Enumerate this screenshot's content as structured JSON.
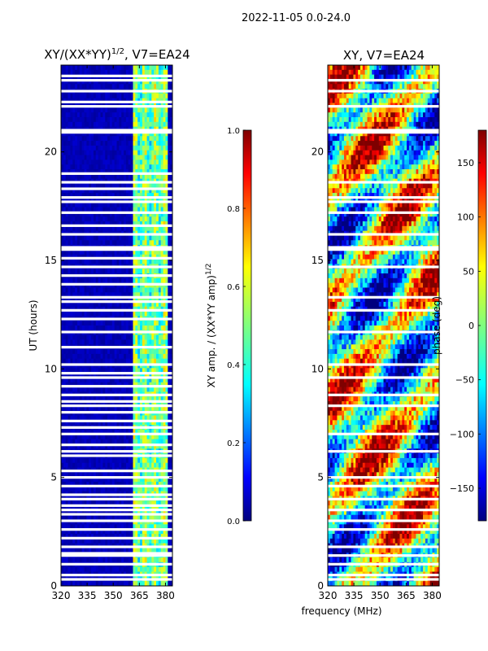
{
  "suptitle": "2022-11-05 0.0-24.0",
  "shared": {
    "xlabel": "frequency (MHz)"
  },
  "colors": {
    "jet": [
      "#00007f",
      "#0000ff",
      "#007fff",
      "#00ffff",
      "#7fff7f",
      "#ffff00",
      "#ff7f00",
      "#ff0000",
      "#7f0000"
    ],
    "gap": "#ffffff",
    "axis": "#000000"
  },
  "chart_data": [
    {
      "type": "heatmap",
      "title_main": "XY/(XX*YY)",
      "title_sup": "1/2",
      "title_rest": ", V7=EA24",
      "xlabel": "",
      "ylabel": "UT (hours)",
      "xlim": [
        320,
        384
      ],
      "ylim": [
        0,
        24
      ],
      "x_ticks": [
        320,
        335,
        350,
        365,
        380
      ],
      "y_ticks": [
        0,
        5,
        10,
        15,
        20
      ],
      "colorbar": {
        "label_main": "XY amp. / (XX*YY amp)",
        "label_sup": "1/2",
        "range": [
          0.0,
          1.0
        ],
        "ticks": [
          0.0,
          0.2,
          0.4,
          0.6,
          0.8,
          1.0
        ],
        "tick_labels": [
          "0.0",
          "0.2",
          "0.4",
          "0.6",
          "0.8",
          "1.0"
        ]
      },
      "pattern": "low amplitude (~0.05) below 360 MHz; elevated 0.3-0.6 between 360 and 381 MHz",
      "flagged_ut_hours": [
        0.3,
        0.5,
        1.0,
        1.4,
        1.5,
        1.8,
        2.2,
        2.6,
        3.0,
        3.3,
        3.5,
        3.7,
        4.0,
        4.2,
        4.6,
        5.0,
        5.3,
        6.0,
        6.2,
        6.5,
        7.0,
        7.3,
        7.6,
        8.0,
        8.3,
        8.5,
        8.8,
        9.2,
        9.6,
        9.8,
        10.2,
        11.0,
        11.7,
        12.3,
        12.7,
        13.1,
        13.3,
        13.9,
        14.3,
        14.7,
        15.1,
        15.5,
        15.6,
        16.2,
        16.6,
        17.2,
        17.7,
        17.9,
        18.3,
        18.6,
        19.0,
        20.9,
        21.0,
        22.1,
        22.3,
        22.8,
        23.3,
        23.5
      ]
    },
    {
      "type": "heatmap",
      "title_main": "XY, V7=EA24",
      "title_sup": "",
      "title_rest": "",
      "xlabel": "frequency (MHz)",
      "ylabel": "",
      "xlim": [
        320,
        384
      ],
      "ylim": [
        0,
        24
      ],
      "x_ticks": [
        320,
        335,
        350,
        365,
        380
      ],
      "y_ticks": [
        0,
        5,
        10,
        15,
        20
      ],
      "colorbar": {
        "label_main": "phase (deg)",
        "label_sup": "",
        "range": [
          -180,
          180
        ],
        "ticks": [
          -150,
          -100,
          -50,
          0,
          50,
          100,
          150
        ],
        "tick_labels": [
          "−150",
          "−100",
          "−50",
          "0",
          "50",
          "100",
          "150"
        ]
      },
      "pattern": "phase varies across full -180 to 180 deg range with horizontal banding",
      "flagged_ut_hours": [
        0.3,
        0.5,
        1.0,
        1.4,
        1.8,
        2.6,
        3.0,
        3.5,
        4.0,
        4.6,
        5.0,
        6.2,
        7.0,
        8.3,
        8.8,
        9.6,
        10.2,
        11.7,
        12.7,
        13.3,
        14.7,
        15.5,
        15.6,
        16.2,
        17.2,
        17.7,
        17.9,
        18.6,
        20.9,
        21.0,
        22.1,
        22.8,
        23.3
      ]
    }
  ]
}
